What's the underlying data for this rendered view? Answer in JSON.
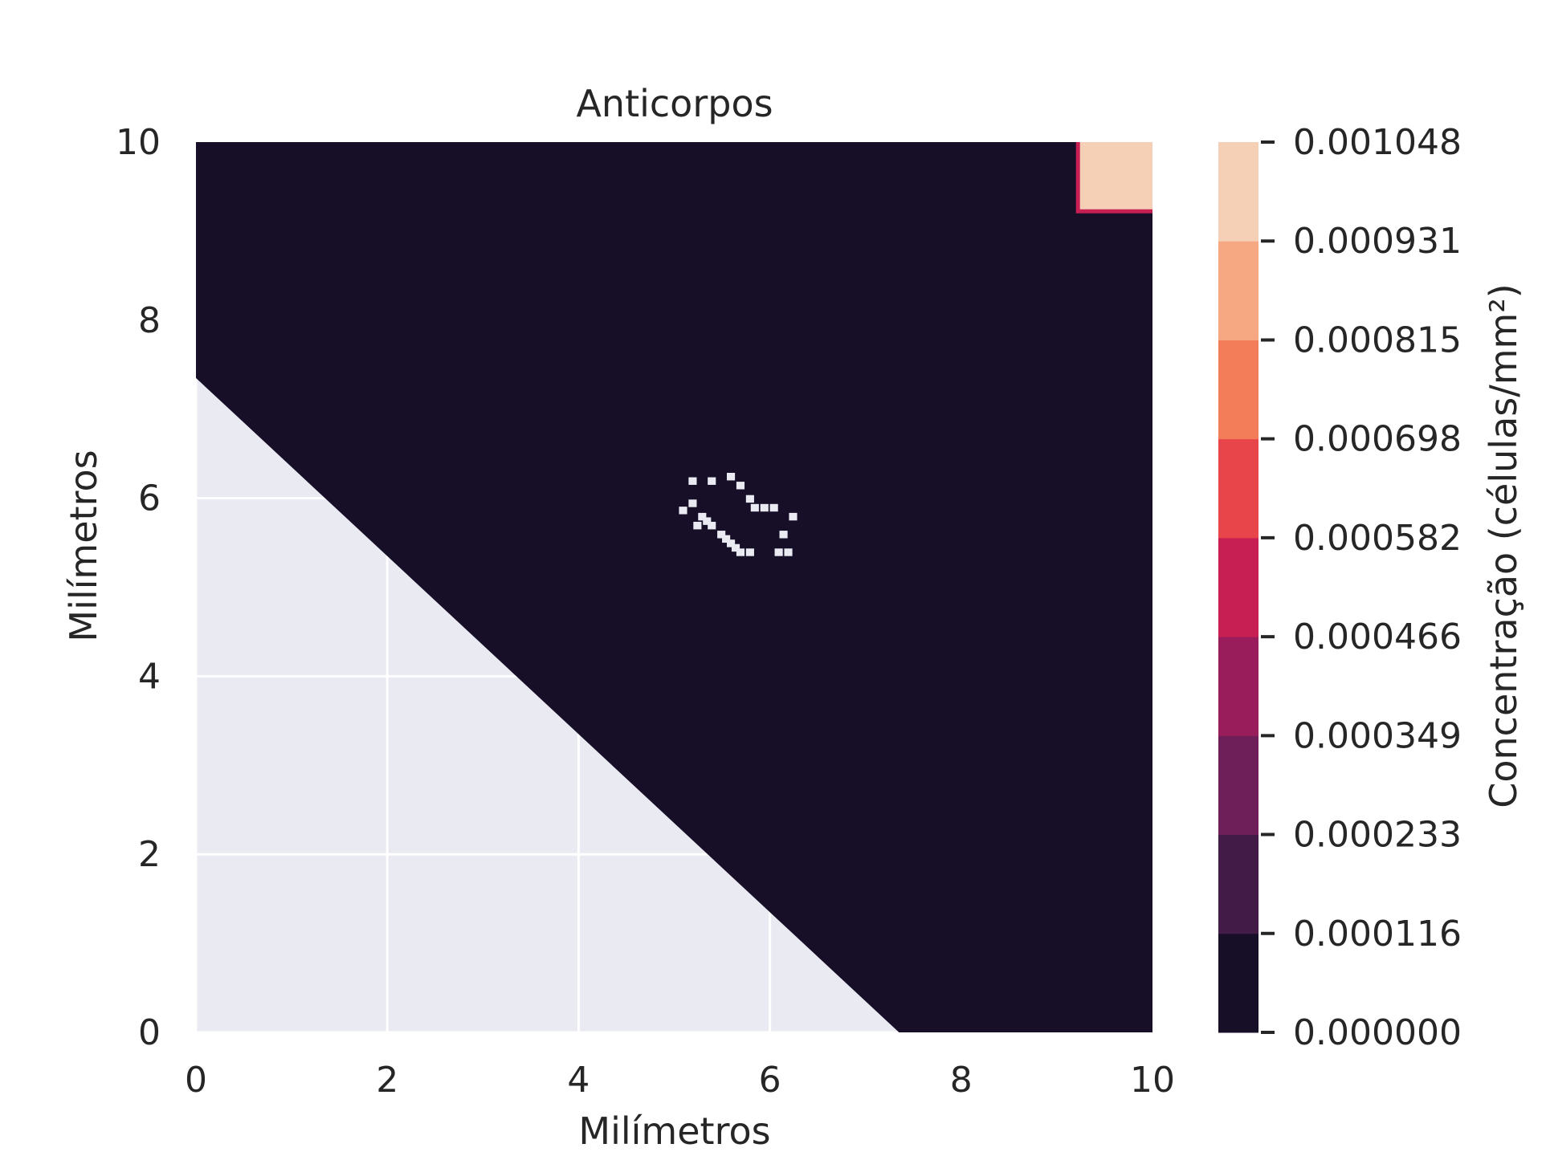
{
  "chart_data": {
    "type": "heatmap",
    "title": "Anticorpos",
    "xlabel": "Milímetros",
    "ylabel": "Milímetros",
    "xlim": [
      0,
      10
    ],
    "ylim": [
      0,
      10
    ],
    "x_ticks": [
      "0",
      "2",
      "4",
      "6",
      "8",
      "10"
    ],
    "y_ticks": [
      "0",
      "2",
      "4",
      "6",
      "8",
      "10"
    ],
    "grid": true,
    "colorbar": {
      "label": "Concentração (células/mm²)",
      "levels": [
        "0.000000",
        "0.000116",
        "0.000233",
        "0.000349",
        "0.000466",
        "0.000582",
        "0.000698",
        "0.000815",
        "0.000931",
        "0.001048"
      ],
      "colors": [
        "#170f28",
        "#431b47",
        "#6e1f59",
        "#9a1d5b",
        "#c71f53",
        "#e8454a",
        "#f37d58",
        "#f5a882",
        "#f6d0b6"
      ]
    },
    "regions": {
      "background_color": "#eaeaf2",
      "diagonal_boundary": [
        [
          0,
          7.35
        ],
        [
          7.35,
          0
        ]
      ],
      "filled_value": 0.0,
      "high_square": {
        "x": [
          9.2,
          10
        ],
        "y": [
          9.2,
          10
        ],
        "value": 0.001048
      },
      "sparse_cluster_center": [
        5.7,
        5.7
      ]
    }
  }
}
